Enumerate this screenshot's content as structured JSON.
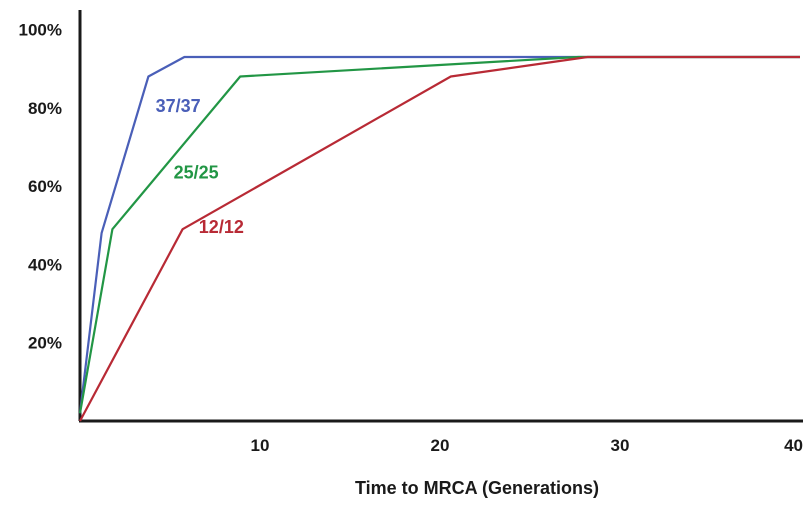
{
  "chart_data": {
    "type": "line",
    "title": "",
    "xlabel": "Time to MRCA (Generations)",
    "ylabel": "",
    "xlim": [
      0,
      40
    ],
    "ylim": [
      0,
      105
    ],
    "x_ticks": [
      10,
      20,
      30,
      40
    ],
    "y_ticks": [
      20,
      40,
      60,
      80,
      100
    ],
    "y_tick_suffix": "%",
    "grid": false,
    "legend": "inline labels on lines",
    "series": [
      {
        "name": "37/37",
        "color": "#4a5fb8",
        "points": [
          [
            0,
            2
          ],
          [
            1.2,
            48
          ],
          [
            3.8,
            88
          ],
          [
            5.8,
            93
          ],
          [
            40,
            93
          ]
        ]
      },
      {
        "name": "25/25",
        "color": "#229645",
        "points": [
          [
            0,
            2
          ],
          [
            1.8,
            49
          ],
          [
            8.9,
            88
          ],
          [
            27.7,
            93
          ],
          [
            40,
            93
          ]
        ]
      },
      {
        "name": "12/12",
        "color": "#b82a35",
        "points": [
          [
            0,
            0
          ],
          [
            5.7,
            49
          ],
          [
            20.6,
            88
          ],
          [
            28.2,
            93
          ],
          [
            40,
            93
          ]
        ]
      }
    ],
    "annotations": [
      {
        "text": "37/37",
        "x": 4.2,
        "y": 79,
        "series": "37/37"
      },
      {
        "text": "25/25",
        "x": 5.2,
        "y": 62,
        "series": "25/25"
      },
      {
        "text": "12/12",
        "x": 6.6,
        "y": 48,
        "series": "12/12"
      }
    ]
  }
}
